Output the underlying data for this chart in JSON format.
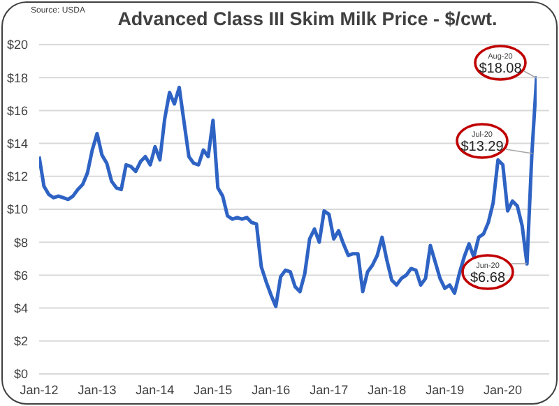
{
  "chart_data": {
    "type": "line",
    "title": "Advanced Class III Skim Milk Price - $/cwt.",
    "categories": [
      "Jan-12",
      null,
      null,
      null,
      null,
      null,
      null,
      null,
      null,
      null,
      null,
      null,
      "Jan-13",
      null,
      null,
      null,
      null,
      null,
      null,
      null,
      null,
      null,
      null,
      null,
      "Jan-14",
      null,
      null,
      null,
      null,
      null,
      null,
      null,
      null,
      null,
      null,
      null,
      "Jan-15",
      null,
      null,
      null,
      null,
      null,
      null,
      null,
      null,
      null,
      null,
      null,
      "Jan-16",
      null,
      null,
      null,
      null,
      null,
      null,
      null,
      null,
      null,
      null,
      null,
      "Jan-17",
      null,
      null,
      null,
      null,
      null,
      null,
      null,
      null,
      null,
      null,
      null,
      "Jan-18",
      null,
      null,
      null,
      null,
      null,
      null,
      null,
      null,
      null,
      null,
      null,
      "Jan-19",
      null,
      null,
      null,
      null,
      null,
      null,
      null,
      null,
      null,
      null,
      null,
      "Jan-20",
      null,
      null,
      null,
      null,
      null,
      null,
      null
    ],
    "series": [
      {
        "color": "#2e63c4",
        "values": [
          13.2,
          11.4,
          10.9,
          10.7,
          10.8,
          10.7,
          10.6,
          10.8,
          11.2,
          11.5,
          12.2,
          13.6,
          14.6,
          13.3,
          12.8,
          11.7,
          11.3,
          11.2,
          12.7,
          12.6,
          12.3,
          12.9,
          13.2,
          12.7,
          13.8,
          13.0,
          15.5,
          17.1,
          16.4,
          17.4,
          15.3,
          13.2,
          12.8,
          12.7,
          13.6,
          13.2,
          15.4,
          11.3,
          10.8,
          9.6,
          9.4,
          9.5,
          9.4,
          9.5,
          9.2,
          9.1,
          6.5,
          5.6,
          4.8,
          4.1,
          5.9,
          6.3,
          6.2,
          5.3,
          5.0,
          6.1,
          8.2,
          8.8,
          8.0,
          9.9,
          9.7,
          8.2,
          8.7,
          7.9,
          7.2,
          7.3,
          7.3,
          5.0,
          6.2,
          6.6,
          7.2,
          8.3,
          6.9,
          5.7,
          5.4,
          5.8,
          6.0,
          6.4,
          6.3,
          5.4,
          5.8,
          7.8,
          6.8,
          5.8,
          5.2,
          5.4,
          4.9,
          6.1,
          7.1,
          7.9,
          7.1,
          8.3,
          8.5,
          9.2,
          10.4,
          13.0,
          12.7,
          9.9,
          10.5,
          10.2,
          9.0,
          6.68,
          13.29,
          18.08
        ]
      }
    ],
    "ylim": [
      0,
      20
    ],
    "yticks": [
      {
        "value": 0,
        "label": "$0"
      },
      {
        "value": 2,
        "label": "$2"
      },
      {
        "value": 4,
        "label": "$4"
      },
      {
        "value": 6,
        "label": "$6"
      },
      {
        "value": 8,
        "label": "$8"
      },
      {
        "value": 10,
        "label": "$10"
      },
      {
        "value": 12,
        "label": "$12"
      },
      {
        "value": 14,
        "label": "$14"
      },
      {
        "value": 16,
        "label": "$16"
      },
      {
        "value": 18,
        "label": "$18"
      },
      {
        "value": 20,
        "label": "$20"
      }
    ],
    "grid": "y",
    "marker": "none",
    "line_style": "solid",
    "annotations": [
      "Source: USDA",
      "Aug-20\n$18.08",
      "Jul-20\n$13.29",
      "Jun-20\n$6.68"
    ]
  }
}
